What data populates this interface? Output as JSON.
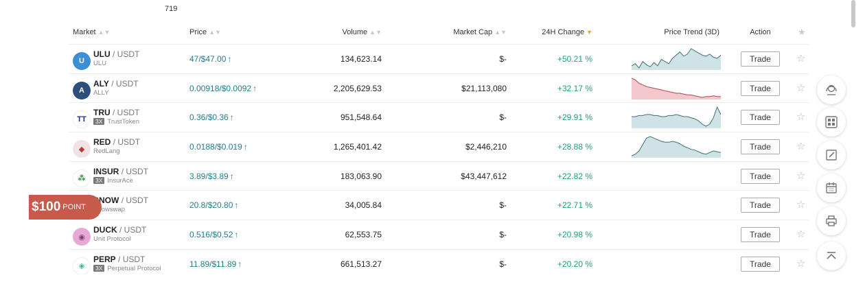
{
  "top_count": "719",
  "colors": {
    "price": "#1e7e8c",
    "change_up": "#19a17a",
    "sort_active": "#f0a030",
    "promo": "#c85a4c",
    "trend_up_fill": "#cfe3e6",
    "trend_down_fill": "#f3c8cc"
  },
  "headers": {
    "market": "Market",
    "price": "Price",
    "volume": "Volume",
    "market_cap": "Market Cap",
    "change": "24H Change",
    "trend": "Price Trend (3D)",
    "action": "Action"
  },
  "rows": [
    {
      "symbol": "ULU",
      "quote": "/ USDT",
      "lev": "",
      "name": "ULU",
      "price": "47/$47.00",
      "volume": "134,623.14",
      "cap": "$-",
      "change": "+50.21 %",
      "trade": "Trade",
      "icon": "ulu-coin-icon",
      "trend": [
        20,
        22,
        18,
        24,
        21,
        19,
        23,
        20,
        26,
        24,
        22,
        27,
        30,
        33,
        29,
        31,
        36,
        34,
        32,
        30,
        29,
        31,
        28,
        27,
        30
      ]
    },
    {
      "symbol": "ALY",
      "quote": "/ USDT",
      "lev": "",
      "name": "ALLY",
      "price": "0.00918/$0.0092",
      "volume": "2,205,629.53",
      "cap": "$21,113,080",
      "change": "+32.17 %",
      "trade": "Trade",
      "icon": "ally-coin-icon",
      "trend": [
        34,
        32,
        28,
        26,
        24,
        23,
        22,
        21,
        20,
        19,
        18,
        17,
        16,
        16,
        15,
        14,
        14,
        13,
        12,
        11,
        12,
        12,
        13,
        12,
        12
      ]
    },
    {
      "symbol": "TRU",
      "quote": "/ USDT",
      "lev": "3X",
      "name": "TrustToken",
      "price": "0.36/$0.36",
      "volume": "951,548.64",
      "cap": "$-",
      "change": "+29.91 %",
      "trade": "Trade",
      "icon": "trusttoken-coin-icon",
      "trend": [
        24,
        24,
        25,
        25,
        26,
        26,
        25,
        25,
        24,
        24,
        25,
        25,
        26,
        25,
        24,
        24,
        23,
        22,
        20,
        17,
        15,
        17,
        23,
        33,
        26
      ]
    },
    {
      "symbol": "RED",
      "quote": "/ USDT",
      "lev": "",
      "name": "RedLang",
      "price": "0.0188/$0.019",
      "volume": "1,265,401.42",
      "cap": "$2,446,210",
      "change": "+28.88 %",
      "trade": "Trade",
      "icon": "redlang-coin-icon",
      "trend": [
        10,
        12,
        16,
        24,
        32,
        34,
        32,
        30,
        28,
        27,
        27,
        28,
        27,
        25,
        22,
        20,
        18,
        17,
        15,
        13,
        12,
        14,
        16,
        15,
        14
      ]
    },
    {
      "symbol": "INSUR",
      "quote": "/ USDT",
      "lev": "3X",
      "name": "InsurAce",
      "price": "3.89/$3.89",
      "volume": "183,063.90",
      "cap": "$43,447,612",
      "change": "+22.82 %",
      "trade": "Trade",
      "icon": "insurace-coin-icon",
      "trend": []
    },
    {
      "symbol": "SNOW",
      "quote": "/ USDT",
      "lev": "",
      "name": "Snowswap",
      "price": "20.8/$20.80",
      "volume": "34,005.84",
      "cap": "$-",
      "change": "+22.71 %",
      "trade": "Trade",
      "icon": "snowswap-coin-icon",
      "trend": []
    },
    {
      "symbol": "DUCK",
      "quote": "/ USDT",
      "lev": "",
      "name": "Unit Protocol",
      "price": "0.516/$0.52",
      "volume": "62,553.75",
      "cap": "$-",
      "change": "+20.98 %",
      "trade": "Trade",
      "icon": "duck-coin-icon",
      "trend": []
    },
    {
      "symbol": "PERP",
      "quote": "/ USDT",
      "lev": "3X",
      "name": "Perpetual Protocol",
      "price": "11.89/$11.89",
      "volume": "661,513.27",
      "cap": "$-",
      "change": "+20.20 %",
      "trade": "Trade",
      "icon": "perp-coin-icon",
      "trend": []
    }
  ],
  "promo": {
    "amount": "$100",
    "label": "POINT"
  },
  "side_buttons": [
    "support-icon",
    "apps-grid-icon",
    "edit-icon",
    "calendar-icon",
    "print-icon",
    "back-to-top-icon"
  ]
}
